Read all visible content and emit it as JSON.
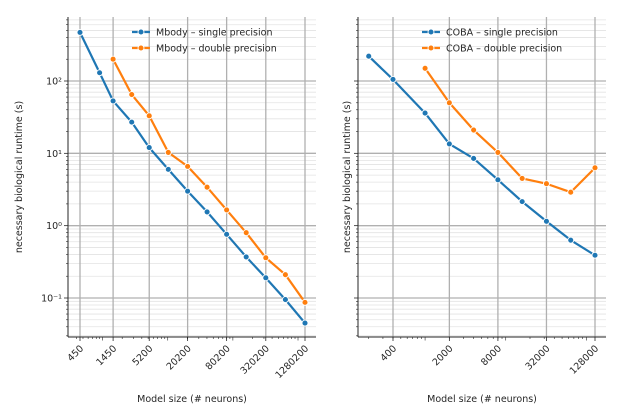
{
  "chart_data": [
    {
      "type": "line",
      "xscale": "log",
      "yscale": "log",
      "xlabel": "Model size (# neurons)",
      "ylabel": "necessary biological runtime (s)",
      "grid": true,
      "legend_position": "top-right",
      "x_ticks": [
        450,
        1450,
        5200,
        20200,
        80200,
        320200,
        1280200
      ],
      "x_tick_labels": [
        "450",
        "1450",
        "5200",
        "20200",
        "80200",
        "320200",
        "1280200"
      ],
      "ylim": [
        0.03,
        900
      ],
      "y_ticks": [
        0.1,
        1,
        10,
        100
      ],
      "y_tick_labels": [
        "10⁻¹",
        "10⁰",
        "10¹",
        "10²"
      ],
      "series": [
        {
          "name": "Mbody – single precision",
          "color": "#1f77b4",
          "x": [
            450,
            900,
            1450,
            2800,
            5200,
            10200,
            20200,
            40200,
            80200,
            160200,
            320200,
            640200,
            1280200
          ],
          "y": [
            470,
            130,
            53,
            27,
            12,
            6,
            3,
            1.55,
            0.76,
            0.37,
            0.19,
            0.095,
            0.045
          ]
        },
        {
          "name": "Mbody – double precision",
          "color": "#ff7f0e",
          "x": [
            1450,
            2800,
            5200,
            10200,
            20200,
            40200,
            80200,
            160200,
            320200,
            640200,
            1280200
          ],
          "y": [
            200,
            65,
            33,
            10.3,
            6.6,
            3.4,
            1.65,
            0.8,
            0.36,
            0.21,
            0.087
          ]
        }
      ]
    },
    {
      "type": "line",
      "xscale": "log",
      "yscale": "log",
      "xlabel": "Model size (# neurons)",
      "ylabel": "necessary biological runtime (s)",
      "grid": true,
      "legend_position": "top-right",
      "x_ticks": [
        400,
        2000,
        8000,
        32000,
        128000
      ],
      "x_tick_labels": [
        "400",
        "2000",
        "8000",
        "32000",
        "128000"
      ],
      "ylim": [
        0.03,
        900
      ],
      "y_ticks": [
        0.1,
        1,
        10,
        100
      ],
      "series": [
        {
          "name": "COBA – single precision",
          "color": "#1f77b4",
          "x": [
            200,
            400,
            1000,
            2000,
            4000,
            8000,
            16000,
            32000,
            64000,
            128000
          ],
          "y": [
            220,
            105,
            36,
            13.5,
            8.5,
            4.3,
            2.15,
            1.15,
            0.63,
            0.39
          ]
        },
        {
          "name": "COBA – double precision",
          "color": "#ff7f0e",
          "x": [
            1000,
            2000,
            4000,
            8000,
            16000,
            32000,
            64000,
            128000
          ],
          "y": [
            150,
            50,
            21,
            10.3,
            4.5,
            3.8,
            2.9,
            6.3
          ]
        }
      ]
    }
  ]
}
